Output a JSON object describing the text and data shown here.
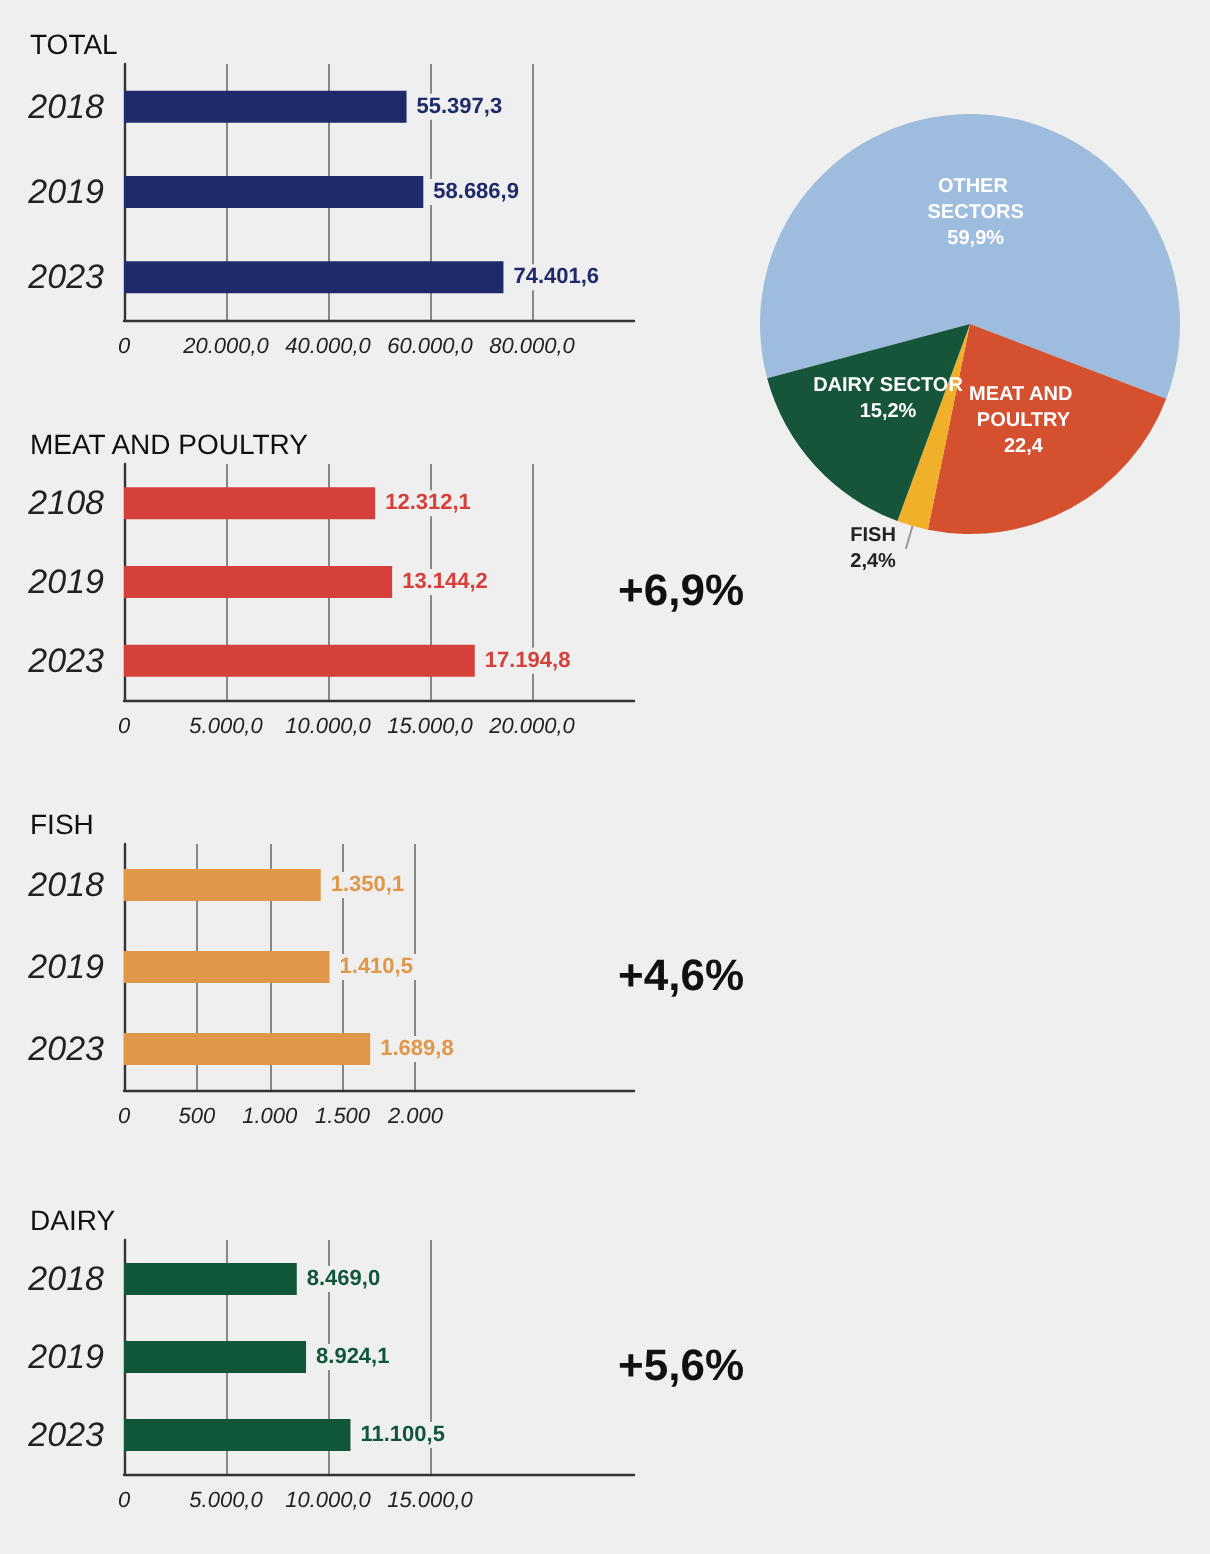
{
  "chart_data": [
    {
      "type": "bar",
      "orientation": "horizontal",
      "title": "TOTAL",
      "categories": [
        "2018",
        "2019",
        "2023"
      ],
      "values": [
        55397.3,
        58686.9,
        74401.6
      ],
      "value_labels": [
        "55.397,3",
        "58.686,9",
        "74.401,6"
      ],
      "color": "#1f2a6b",
      "xlim": [
        0,
        100000
      ],
      "xticks": [
        {
          "value": 0,
          "label": "0"
        },
        {
          "value": 20000,
          "label": "20.000,0"
        },
        {
          "value": 40000,
          "label": "40.000,0"
        },
        {
          "value": 60000,
          "label": "60.000,0"
        },
        {
          "value": 80000,
          "label": "80.000,0"
        }
      ],
      "grid": "x"
    },
    {
      "type": "pie",
      "categories": [
        "OTHER SECTORS",
        "MEAT AND POULTRY",
        "FISH",
        "DAIRY SECTOR"
      ],
      "values": [
        59.9,
        22.4,
        2.4,
        15.2
      ],
      "value_labels": [
        "59,9%",
        "22,4",
        "2,4%",
        "15,2%"
      ],
      "colors": [
        "#9dbcde",
        "#d4502f",
        "#f0b02a",
        "#17553a"
      ]
    },
    {
      "type": "bar",
      "orientation": "horizontal",
      "title": "MEAT AND POULTRY",
      "categories": [
        "2108",
        "2019",
        "2023"
      ],
      "values": [
        12312.1,
        13144.2,
        17194.8
      ],
      "value_labels": [
        "12.312,1",
        "13.144,2",
        "17.194,8"
      ],
      "color": "#d6403a",
      "xlim": [
        0,
        25000
      ],
      "xticks": [
        {
          "value": 0,
          "label": "0"
        },
        {
          "value": 5000,
          "label": "5.000,0"
        },
        {
          "value": 10000,
          "label": "10.000,0"
        },
        {
          "value": 15000,
          "label": "15.000,0"
        },
        {
          "value": 20000,
          "label": "20.000,0"
        }
      ],
      "grid": "x",
      "annotations": [
        "+6,9%"
      ]
    },
    {
      "type": "bar",
      "orientation": "horizontal",
      "title": "FISH",
      "categories": [
        "2018",
        "2019",
        "2023"
      ],
      "values": [
        1350.1,
        1410.5,
        1689.8
      ],
      "value_labels": [
        "1.350,1",
        "1.410,5",
        "1.689,8"
      ],
      "color": "#e0974a",
      "xlim": [
        0,
        3500
      ],
      "xticks": [
        0,
        500,
        {
          "value": 1000,
          "label": "1.000"
        },
        {
          "value": 1500,
          "label": "1.500"
        },
        {
          "value": 2000,
          "label": "2.000"
        }
      ],
      "grid": "x",
      "annotations": [
        "+4,6%"
      ]
    },
    {
      "type": "bar",
      "orientation": "horizontal",
      "title": "DAIRY",
      "categories": [
        "2018",
        "2019",
        "2023"
      ],
      "values": [
        8469.0,
        8924.1,
        11100.5
      ],
      "value_labels": [
        "8.469,0",
        "8.924,1",
        "11.100,5"
      ],
      "color": "#10573a",
      "xlim": [
        0,
        25000
      ],
      "xticks": [
        {
          "value": 0,
          "label": "0"
        },
        {
          "value": 5000,
          "label": "5.000,0"
        },
        {
          "value": 10000,
          "label": "10.000,0"
        },
        {
          "value": 15000,
          "label": "15.000,0"
        }
      ],
      "grid": "x",
      "annotations": [
        "+5,6%"
      ]
    }
  ]
}
